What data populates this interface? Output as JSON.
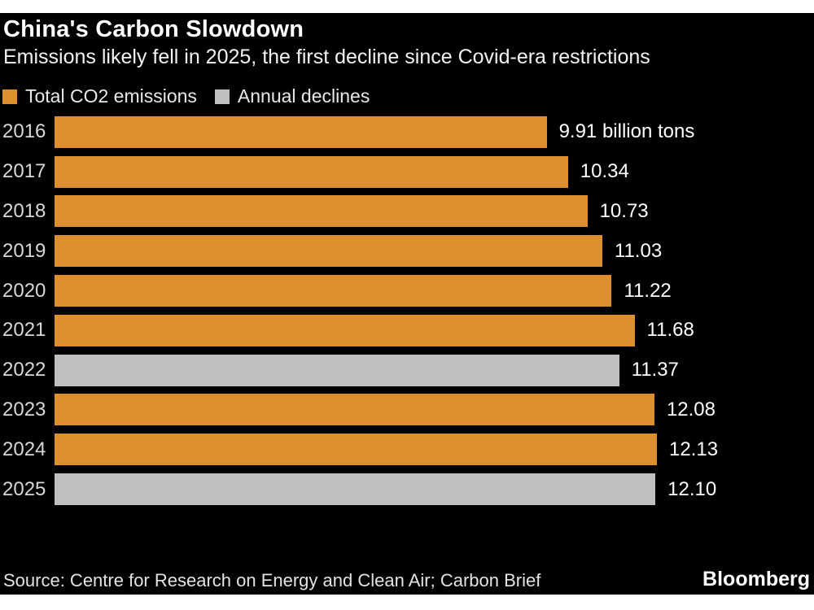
{
  "title": "China's Carbon Slowdown",
  "subtitle": "Emissions likely fell in 2025, the first decline since Covid-era restrictions",
  "legend": {
    "items": [
      {
        "label": "Total CO2 emissions",
        "color": "#DE8F2D"
      },
      {
        "label": "Annual declines",
        "color": "#BFBFBF"
      }
    ]
  },
  "chart_data": {
    "type": "bar",
    "orientation": "horizontal",
    "title": "China's Carbon Slowdown",
    "categories": [
      "2016",
      "2017",
      "2018",
      "2019",
      "2020",
      "2021",
      "2022",
      "2023",
      "2024",
      "2025"
    ],
    "values": [
      9.91,
      10.34,
      10.73,
      11.03,
      11.22,
      11.68,
      11.37,
      12.08,
      12.13,
      12.1
    ],
    "value_labels": [
      "9.91 billion tons",
      "10.34",
      "10.73",
      "11.03",
      "11.22",
      "11.68",
      "11.37",
      "12.08",
      "12.13",
      "12.10"
    ],
    "unit": "billion tons",
    "decline_years": [
      "2022",
      "2025"
    ],
    "series": [
      {
        "name": "Total CO2 emissions",
        "color": "#DE8F2D"
      },
      {
        "name": "Annual declines",
        "color": "#BFBFBF"
      }
    ],
    "xlim": [
      0,
      12.13
    ],
    "grid": false,
    "legend_position": "top"
  },
  "source": "Source: Centre for Research on Energy and Clean Air; Carbon Brief",
  "brand": "Bloomberg",
  "colors": {
    "background": "#000000",
    "page_margin": "#ffffff",
    "orange": "#DE8F2D",
    "gray": "#BFBFBF",
    "text": "#ffffff"
  }
}
